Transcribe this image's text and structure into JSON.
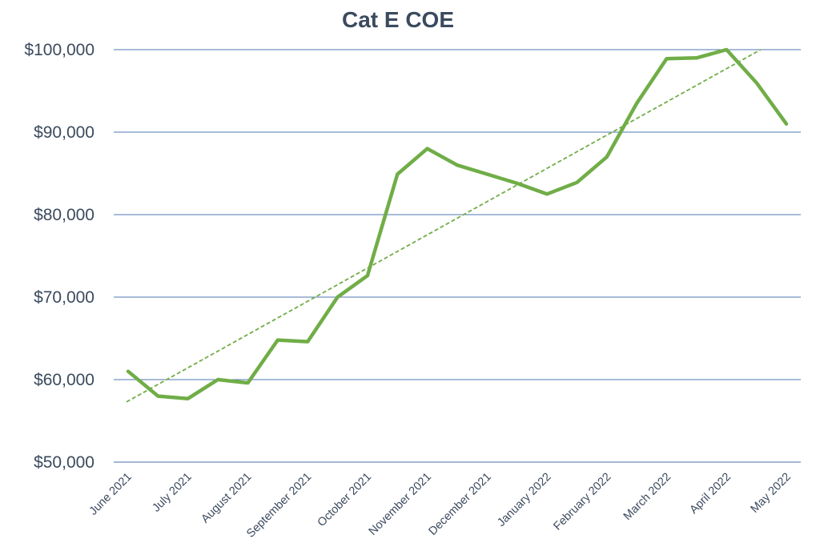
{
  "chart_data": {
    "type": "line",
    "title": "Cat E COE",
    "xlabel": "",
    "ylabel": "",
    "ylim": [
      50000,
      100000
    ],
    "y_ticks": [
      50000,
      60000,
      70000,
      80000,
      90000,
      100000
    ],
    "y_tick_labels": [
      "$50,000",
      "$60,000",
      "$70,000",
      "$80,000",
      "$90,000",
      "$100,000"
    ],
    "x_tick_labels": [
      "June 2021",
      "July 2021",
      "August 2021",
      "September 2021",
      "October 2021",
      "November 2021",
      "December 2021",
      "January 2022",
      "February 2022",
      "March 2022",
      "April 2022",
      "May 2022"
    ],
    "series": [
      {
        "values": [
          61000,
          58000,
          57700,
          60000,
          59600,
          64800,
          64600,
          70000,
          72600,
          84900,
          88000,
          86000,
          84900,
          83800,
          82500,
          83900,
          87000,
          93500,
          98900,
          99000,
          100000,
          96000,
          91000
        ],
        "color": "#70ad47"
      }
    ],
    "trendline": {
      "type": "linear",
      "style": "dashed",
      "color": "#70ad47",
      "start_value": 57300,
      "end_value": 100000
    },
    "grid": true,
    "legend": "none"
  }
}
